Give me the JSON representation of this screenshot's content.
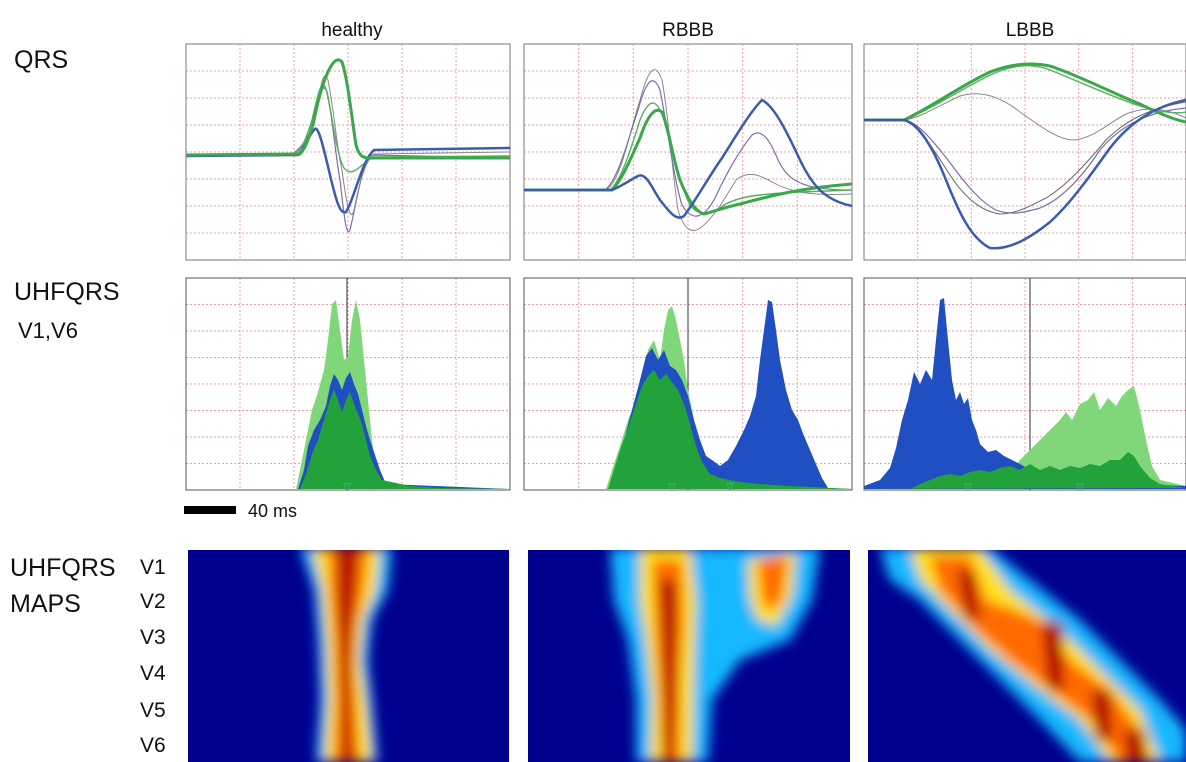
{
  "columns": [
    {
      "id": "healthy",
      "title": "healthy"
    },
    {
      "id": "rbbb",
      "title": "RBBB"
    },
    {
      "id": "lbbb",
      "title": "LBBB"
    }
  ],
  "rows": {
    "qrs": {
      "label": "QRS"
    },
    "uhf": {
      "label": "UHFQRS",
      "sublabel": "V1,V6"
    },
    "maps": {
      "label_line1": "UHFQRS",
      "label_line2": "MAPS"
    }
  },
  "leads": [
    "V1",
    "V2",
    "V3",
    "V4",
    "V5",
    "V6"
  ],
  "scale_bar": {
    "label": "40 ms"
  },
  "colors": {
    "grid": "#e8a0a8",
    "trace_green": "#3aa84a",
    "trace_blue": "#3a5cae",
    "fill_light_green": "#7fd77a",
    "fill_dark_green": "#23a13a",
    "fill_blue": "#1f4fc0",
    "map_background": "#00008f"
  }
}
